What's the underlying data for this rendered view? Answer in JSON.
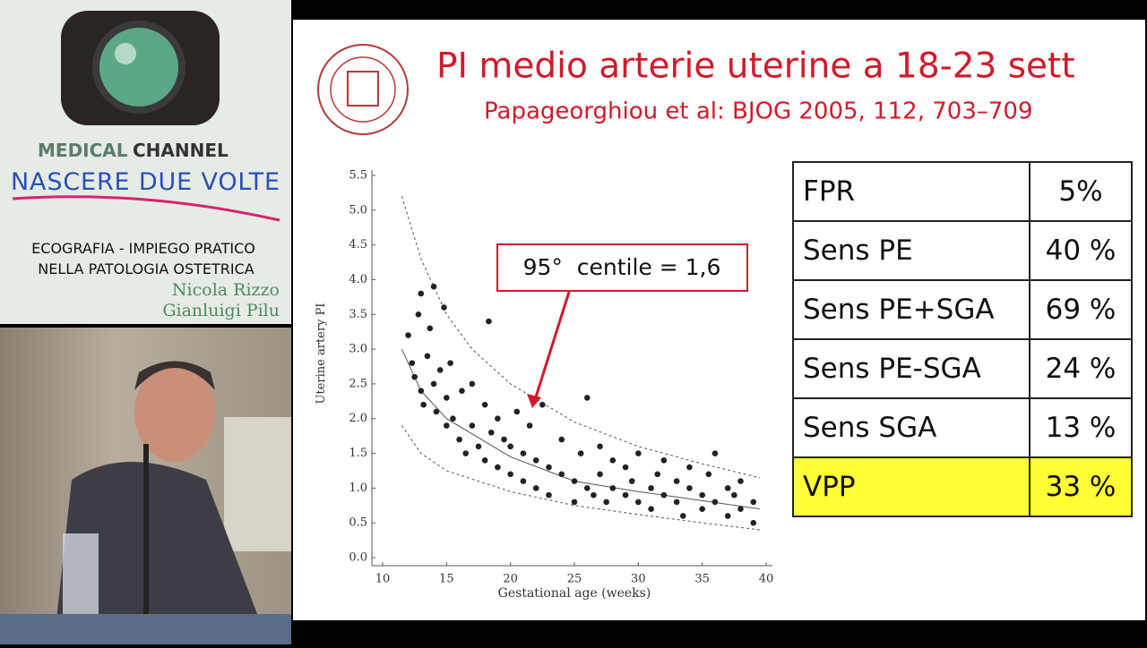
{
  "sidebar": {
    "brand_bold": "MEDICAL",
    "brand_rest": "CHANNEL",
    "program": "NASCERE DUE VOLTE",
    "course_line1": "ECOGRAFIA - IMPIEGO PRATICO",
    "course_line2": "NELLA PATOLOGIA OSTETRICA",
    "author1": "Nicola Rizzo",
    "author2": "Gianluigi Pilu"
  },
  "slide": {
    "title": "PI medio arterie uterine a 18-23 sett",
    "citation": "Papageorghiou et al: BJOG 2005, 112, 703–709",
    "annotation": "95°  centile = 1,6",
    "table": {
      "rows": [
        [
          "FPR",
          "5%"
        ],
        [
          "Sens PE",
          "40 %"
        ],
        [
          "Sens PE+SGA",
          "69 %"
        ],
        [
          "Sens PE-SGA",
          "24 %"
        ],
        [
          "Sens SGA",
          "13 %"
        ],
        [
          "VPP",
          "33 %"
        ]
      ],
      "highlight_color": "#ffff33"
    }
  },
  "chart_data": {
    "type": "scatter",
    "xlabel": "Gestational age (weeks)",
    "ylabel": "Uterine artery PI",
    "xlim": [
      10,
      40
    ],
    "ylim": [
      0,
      5.5
    ],
    "xticks": [
      10,
      15,
      20,
      25,
      30,
      35,
      40
    ],
    "yticks": [
      {
        "value": 0,
        "label": "0.0"
      },
      0.5,
      {
        "value": 1,
        "label": "1.0"
      },
      1.5,
      {
        "value": 2,
        "label": "2.0"
      },
      2.5,
      {
        "value": 3,
        "label": "3.0"
      },
      3.5,
      {
        "value": 4,
        "label": "4.0"
      },
      4.5,
      {
        "value": 5,
        "label": "5.0"
      },
      5.5
    ],
    "color": "#222222",
    "x": [
      12,
      12.3,
      12.5,
      12.8,
      13,
      13,
      13.2,
      13.5,
      13.7,
      14,
      14,
      14.2,
      14.5,
      14.8,
      15,
      15,
      15.3,
      15.5,
      16,
      16.2,
      16.5,
      17,
      17,
      17.5,
      18,
      18,
      18.3,
      18.5,
      19,
      19,
      19.5,
      20,
      20,
      20.5,
      21,
      21,
      21.5,
      22,
      22,
      22.5,
      23,
      23,
      24,
      24,
      25,
      25,
      25.5,
      26,
      26,
      26.5,
      27,
      27,
      27.5,
      28,
      28,
      29,
      29,
      29.5,
      30,
      30,
      31,
      31,
      31.5,
      32,
      32,
      33,
      33,
      33.5,
      34,
      34,
      35,
      35,
      35.5,
      36,
      36,
      37,
      37,
      37.5,
      38,
      38,
      39,
      39
    ],
    "values": [
      3.2,
      2.8,
      2.6,
      3.5,
      2.4,
      3.8,
      2.2,
      2.9,
      3.3,
      2.5,
      3.9,
      2.1,
      2.7,
      3.6,
      2.3,
      1.9,
      2.8,
      2.0,
      1.7,
      2.4,
      1.5,
      1.9,
      2.5,
      1.6,
      1.4,
      2.2,
      3.4,
      1.8,
      1.3,
      2.0,
      1.7,
      1.2,
      1.6,
      2.1,
      1.1,
      1.5,
      1.9,
      1.0,
      1.4,
      2.2,
      0.9,
      1.3,
      1.2,
      1.7,
      0.8,
      1.1,
      1.5,
      1.0,
      2.3,
      0.9,
      1.2,
      1.6,
      0.8,
      1.0,
      1.4,
      0.9,
      1.3,
      1.1,
      0.8,
      1.5,
      1.0,
      0.7,
      1.2,
      0.9,
      1.4,
      0.8,
      1.1,
      0.6,
      1.0,
      1.3,
      0.7,
      0.9,
      1.2,
      0.8,
      1.5,
      0.6,
      1.0,
      0.9,
      0.7,
      1.1,
      0.5,
      0.8
    ],
    "curves": [
      {
        "x": [
          11.5,
          13,
          15,
          17,
          20,
          25,
          30,
          35,
          39.5
        ],
        "values": [
          5.2,
          4.3,
          3.5,
          3.0,
          2.5,
          1.95,
          1.6,
          1.35,
          1.15
        ],
        "dashed": true
      },
      {
        "x": [
          11.5,
          13,
          15,
          20,
          25,
          30,
          35,
          39.5
        ],
        "values": [
          3.0,
          2.4,
          2.0,
          1.45,
          1.1,
          0.95,
          0.82,
          0.7
        ],
        "dashed": false
      },
      {
        "x": [
          11.5,
          13,
          15,
          20,
          25,
          30,
          35,
          39.5
        ],
        "values": [
          1.9,
          1.5,
          1.25,
          0.95,
          0.75,
          0.62,
          0.5,
          0.4
        ],
        "dashed": true
      }
    ]
  }
}
